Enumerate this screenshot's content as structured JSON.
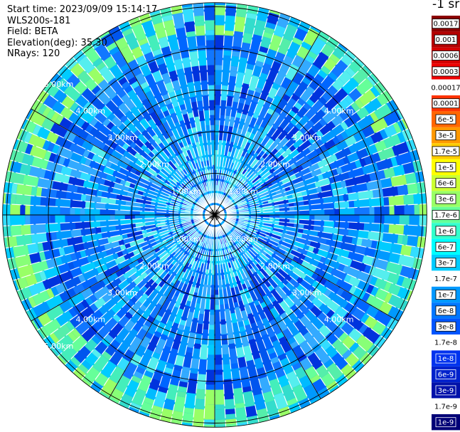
{
  "header": {
    "start_time": "Start time: 2023/09/09 15:14:17",
    "site": "WLS200s-181",
    "field": "Field: BETA",
    "elevation": "Elevation(deg): 35.30",
    "nrays": "NRays: 120"
  },
  "colorbar": {
    "unit": "-1 sr",
    "entries": [
      {
        "label": "0.0017",
        "color": "#8b0000",
        "text_color": "#000000"
      },
      {
        "label": "0.001",
        "color": "#b30000",
        "text_color": "#000000"
      },
      {
        "label": "0.0006",
        "color": "#d40000",
        "text_color": "#000000"
      },
      {
        "label": "0.0003",
        "color": "#ee0000",
        "text_color": "#000000"
      },
      {
        "label": "0.00017",
        "color": "#ffffff",
        "text_color": "#000000"
      },
      {
        "label": "0.0001",
        "color": "#ff3300",
        "text_color": "#000000"
      },
      {
        "label": "6e-5",
        "color": "#ff6600",
        "text_color": "#000000"
      },
      {
        "label": "3e-5",
        "color": "#ff9900",
        "text_color": "#000000"
      },
      {
        "label": "1.7e-5",
        "color": "#ffcc00",
        "text_color": "#000000"
      },
      {
        "label": "1e-5",
        "color": "#ffff00",
        "text_color": "#000000"
      },
      {
        "label": "6e-6",
        "color": "#ccff33",
        "text_color": "#000000"
      },
      {
        "label": "3e-6",
        "color": "#99ff66",
        "text_color": "#000000"
      },
      {
        "label": "1.7e-6",
        "color": "#66ff99",
        "text_color": "#000000"
      },
      {
        "label": "1e-6",
        "color": "#33ffcc",
        "text_color": "#000000"
      },
      {
        "label": "6e-7",
        "color": "#00ffff",
        "text_color": "#000000"
      },
      {
        "label": "3e-7",
        "color": "#00ccff",
        "text_color": "#000000"
      },
      {
        "label": "1.7e-7",
        "color": "#ffffff",
        "text_color": "#000000"
      },
      {
        "label": "1e-7",
        "color": "#0099ff",
        "text_color": "#000000"
      },
      {
        "label": "6e-8",
        "color": "#0077ff",
        "text_color": "#000000"
      },
      {
        "label": "3e-8",
        "color": "#0055ff",
        "text_color": "#000000"
      },
      {
        "label": "1.7e-8",
        "color": "#ffffff",
        "text_color": "#000000"
      },
      {
        "label": "1e-8",
        "color": "#0033ee",
        "text_color": "#ffffff"
      },
      {
        "label": "6e-9",
        "color": "#0022cc",
        "text_color": "#ffffff"
      },
      {
        "label": "3e-9",
        "color": "#0011aa",
        "text_color": "#ffffff"
      },
      {
        "label": "1.7e-9",
        "color": "#ffffff",
        "text_color": "#000000"
      },
      {
        "label": "1e-9",
        "color": "#000077",
        "text_color": "#ffffff"
      }
    ]
  },
  "chart_data": {
    "type": "heatmap",
    "projection": "polar-ppi",
    "field": "BETA",
    "unit": "-1 sr",
    "rays": 120,
    "range_rings_km": [
      1,
      2,
      3,
      4,
      5
    ],
    "max_range_km": 5.1,
    "range_labels": {
      "1": "1.00km",
      "2": "2.00km",
      "3": "3.00km",
      "4": "4.00km",
      "5": "5.00km"
    },
    "spoke_angles_deg": [
      0,
      30,
      60,
      90,
      120,
      150
    ],
    "scale": "log",
    "vmin": "1e-9",
    "vmax": "0.0017",
    "dominant_values_by_range": [
      {
        "range_km": [
          0.0,
          1.5
        ],
        "typical": "6e-7 – 1.7e-6"
      },
      {
        "range_km": [
          1.5,
          3.0
        ],
        "typical": "6e-8 – 3e-7"
      },
      {
        "range_km": [
          3.0,
          4.2
        ],
        "typical": "3e-8 – 1e-7"
      },
      {
        "range_km": [
          4.2,
          4.9
        ],
        "typical": "1e-6 – 6e-6"
      },
      {
        "range_km": [
          4.9,
          5.1
        ],
        "typical": "3e-7 – 1e-6"
      }
    ]
  }
}
